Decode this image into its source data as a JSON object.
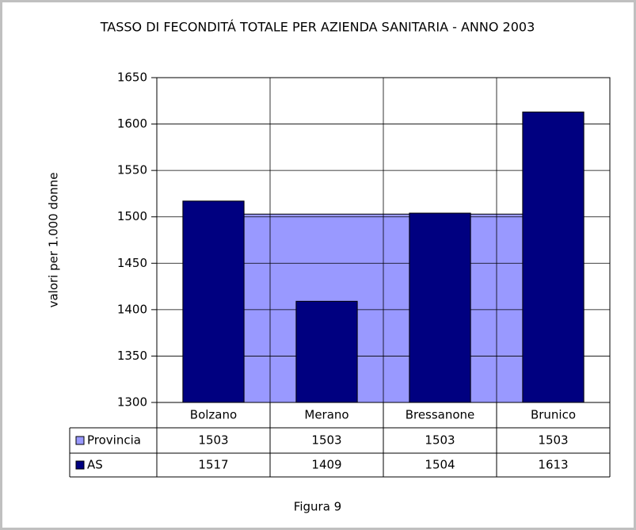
{
  "chart_data": {
    "type": "bar",
    "title": "TASSO DI FECONDITÁ TOTALE PER AZIENDA SANITARIA - ANNO 2003",
    "y_label": "valori per 1.000 donne",
    "categories": [
      "Bolzano",
      "Merano",
      "Bressanone",
      "Brunico"
    ],
    "series": [
      {
        "name": "Provincia",
        "type": "area",
        "color": "#9999ff",
        "values": [
          1503,
          1503,
          1503,
          1503
        ]
      },
      {
        "name": "AS",
        "type": "bar",
        "color": "#000080",
        "values": [
          1517,
          1409,
          1504,
          1613
        ]
      }
    ],
    "ylim": [
      1300,
      1650
    ],
    "yticks": [
      1300,
      1350,
      1400,
      1450,
      1500,
      1550,
      1600,
      1650
    ],
    "grid": true,
    "data_table": true,
    "caption": "Figura 9"
  }
}
